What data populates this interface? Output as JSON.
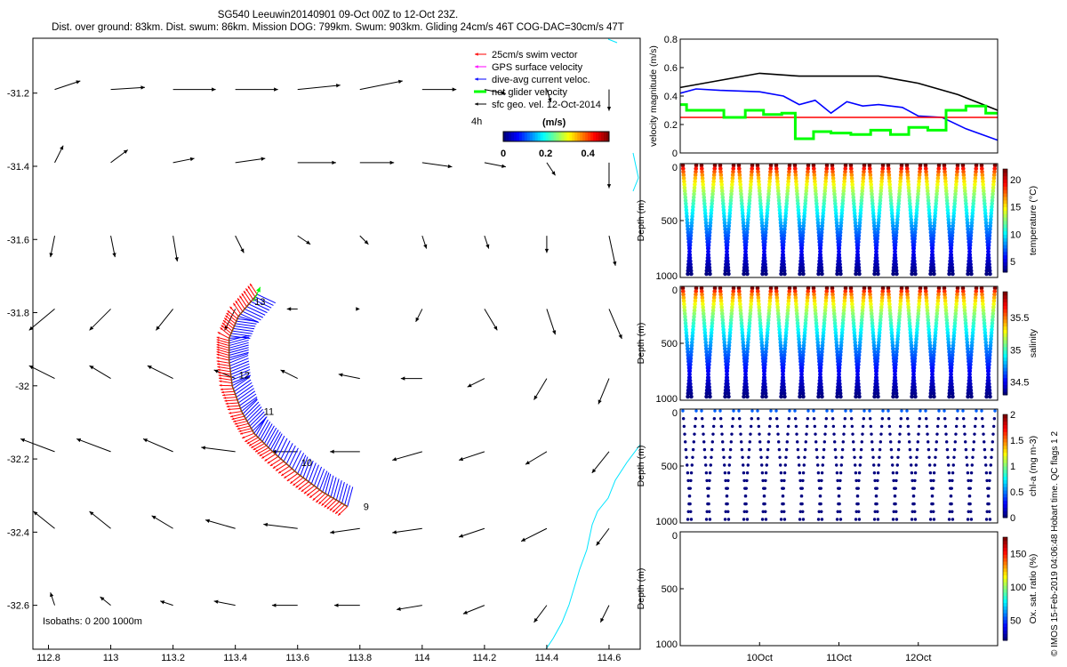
{
  "header": {
    "title_line1": "SG540 Leeuwin20140901 09-Oct 00Z to 12-Oct 23Z.",
    "title_line2": "Dist. over ground: 83km. Dist. swum: 86km. Mission DOG: 799km. Swum: 903km. Gliding 24cm/s 46T COG-DAC=30cm/s 47T"
  },
  "credit": "© IMOS 15-Feb-2019 04:06:48 Hobart time. QC flags 1  2",
  "colors": {
    "swim": "#ff0000",
    "gps": "#ff00ff",
    "dac": "#0000ff",
    "net": "#00ff00",
    "geo": "#000000",
    "coast": "#00e5ff",
    "speed_black": "#000000",
    "speed_blue": "#0000ff",
    "speed_red": "#ff0000",
    "speed_green": "#00ff00"
  },
  "chart_data": [
    {
      "type": "map",
      "xlim": [
        112.75,
        114.7
      ],
      "ylim": [
        -32.72,
        -31.05
      ],
      "x_ticks": [
        "112.8",
        "113",
        "113.2",
        "113.4",
        "113.6",
        "113.8",
        "114",
        "114.2",
        "114.4",
        "114.6"
      ],
      "y_ticks": [
        "-31.2",
        "-31.4",
        "-31.6",
        "-31.8",
        "-32",
        "-32.2",
        "-32.4",
        "-32.6"
      ],
      "legend": [
        "25cm/s swim vector",
        "GPS surface velocity",
        "dive-avg current veloc.",
        "net glider velocity",
        "sfc geo. vel. 12-Oct-2014"
      ],
      "legend_placement": "top-right",
      "colorbar": {
        "label": "(m/s)",
        "ticks": [
          "0",
          "0.2",
          "0.4"
        ],
        "range": [
          0,
          0.5
        ],
        "tag": "4h"
      },
      "isobaths_label": "Isobaths: 0   200  1000m",
      "day_labels": [
        {
          "text": "13",
          "lon": 113.45,
          "lat": -31.77
        },
        {
          "text": "12",
          "lon": 113.4,
          "lat": -31.97
        },
        {
          "text": "11",
          "lon": 113.48,
          "lat": -32.07
        },
        {
          "text": "10",
          "lon": 113.6,
          "lat": -32.21
        },
        {
          "text": "9",
          "lon": 113.8,
          "lat": -32.33
        }
      ],
      "track": [
        [
          113.76,
          -32.33
        ],
        [
          113.68,
          -32.29
        ],
        [
          113.6,
          -32.24
        ],
        [
          113.52,
          -32.18
        ],
        [
          113.46,
          -32.13
        ],
        [
          113.42,
          -32.07
        ],
        [
          113.39,
          -32.0
        ],
        [
          113.38,
          -31.93
        ],
        [
          113.38,
          -31.87
        ],
        [
          113.41,
          -31.81
        ],
        [
          113.47,
          -31.75
        ]
      ],
      "geo_vectors": {
        "lons": [
          112.82,
          113.0,
          113.2,
          113.4,
          113.6,
          113.8,
          114.0,
          114.2,
          114.4,
          114.6
        ],
        "lats": [
          -31.19,
          -31.39,
          -31.59,
          -31.79,
          -31.98,
          -32.18,
          -32.39,
          -32.6
        ],
        "u": [
          [
            0.12,
            0.16,
            0.2,
            0.2,
            0.2,
            0.2,
            0.16,
            0.1,
            0.02,
            0.0
          ],
          [
            0.04,
            0.08,
            0.1,
            0.14,
            0.18,
            0.16,
            0.14,
            0.1,
            0.04,
            0.0
          ],
          [
            -0.02,
            0.02,
            0.02,
            0.04,
            0.06,
            0.04,
            0.02,
            0.02,
            0.0,
            0.03
          ],
          [
            -0.12,
            -0.1,
            -0.08,
            -0.05,
            -0.05,
            0.0,
            -0.03,
            0.06,
            0.04,
            0.06
          ],
          [
            -0.12,
            -0.1,
            -0.12,
            -0.1,
            -0.08,
            -0.1,
            -0.1,
            -0.08,
            -0.06,
            -0.05
          ],
          [
            -0.16,
            -0.16,
            -0.14,
            -0.16,
            -0.12,
            -0.14,
            -0.14,
            -0.12,
            -0.1,
            -0.08
          ],
          [
            -0.1,
            -0.1,
            -0.1,
            -0.14,
            -0.16,
            -0.14,
            -0.14,
            -0.12,
            -0.12,
            -0.06
          ],
          [
            -0.02,
            -0.05,
            -0.06,
            -0.1,
            -0.12,
            -0.12,
            -0.12,
            -0.1,
            -0.06,
            -0.04
          ]
        ],
        "v": [
          [
            0.04,
            0.01,
            0.0,
            0.0,
            0.02,
            0.04,
            0.0,
            -0.02,
            -0.06,
            -0.1
          ],
          [
            0.08,
            0.06,
            0.02,
            0.02,
            0.0,
            0.0,
            -0.02,
            -0.02,
            -0.06,
            -0.12
          ],
          [
            -0.1,
            -0.1,
            -0.12,
            -0.08,
            -0.04,
            -0.04,
            -0.06,
            -0.06,
            -0.08,
            -0.14
          ],
          [
            -0.1,
            -0.1,
            -0.1,
            -0.1,
            0.0,
            0.0,
            -0.06,
            -0.1,
            -0.12,
            -0.14
          ],
          [
            0.06,
            0.06,
            0.06,
            0.04,
            0.04,
            0.02,
            0.0,
            -0.04,
            -0.1,
            -0.12
          ],
          [
            0.06,
            0.06,
            0.06,
            0.02,
            0.0,
            0.0,
            -0.04,
            -0.04,
            -0.06,
            -0.1
          ],
          [
            0.08,
            0.08,
            0.06,
            0.04,
            0.02,
            -0.02,
            -0.02,
            -0.04,
            -0.06,
            -0.08
          ],
          [
            0.06,
            0.04,
            0.02,
            0.02,
            0.0,
            0.0,
            -0.02,
            -0.04,
            -0.08,
            -0.08
          ]
        ]
      }
    },
    {
      "type": "line",
      "ylabel": "velocity magnitude (m/s)",
      "ylim": [
        0,
        0.8
      ],
      "y_ticks": [
        "0",
        "0.2",
        "0.4",
        "0.6",
        "0.8"
      ],
      "x_range_days": [
        9.0,
        13.0
      ],
      "series": [
        {
          "color": "black",
          "x": [
            9.0,
            9.5,
            10.0,
            10.5,
            11.0,
            11.5,
            12.0,
            12.5,
            13.0
          ],
          "y": [
            0.46,
            0.51,
            0.56,
            0.54,
            0.54,
            0.54,
            0.49,
            0.41,
            0.3
          ]
        },
        {
          "color": "blue",
          "x": [
            9.0,
            9.2,
            9.5,
            10.0,
            10.3,
            10.5,
            10.7,
            10.9,
            11.1,
            11.3,
            11.5,
            11.8,
            12.0,
            12.3,
            12.6,
            13.0
          ],
          "y": [
            0.42,
            0.45,
            0.44,
            0.43,
            0.4,
            0.34,
            0.37,
            0.28,
            0.36,
            0.33,
            0.34,
            0.32,
            0.26,
            0.25,
            0.17,
            0.09
          ]
        },
        {
          "color": "red",
          "x": [
            9.0,
            13.0
          ],
          "y": [
            0.25,
            0.25
          ]
        },
        {
          "color": "green",
          "x": [
            9.0,
            9.08,
            9.08,
            9.32,
            9.32,
            9.55,
            9.55,
            9.82,
            9.82,
            10.05,
            10.05,
            10.28,
            10.28,
            10.45,
            10.45,
            10.68,
            10.68,
            10.9,
            10.9,
            11.15,
            11.15,
            11.4,
            11.4,
            11.65,
            11.65,
            11.88,
            11.88,
            12.12,
            12.12,
            12.35,
            12.35,
            12.6,
            12.6,
            12.85,
            12.85,
            13.0
          ],
          "y": [
            0.34,
            0.34,
            0.3,
            0.3,
            0.3,
            0.3,
            0.25,
            0.25,
            0.3,
            0.3,
            0.27,
            0.27,
            0.28,
            0.28,
            0.1,
            0.1,
            0.15,
            0.15,
            0.14,
            0.14,
            0.13,
            0.13,
            0.16,
            0.16,
            0.13,
            0.13,
            0.18,
            0.18,
            0.16,
            0.16,
            0.3,
            0.3,
            0.33,
            0.33,
            0.28,
            0.28
          ]
        }
      ]
    },
    {
      "type": "scatter",
      "variable": "temperature",
      "ylabel": "Depth (m)",
      "colorbar_label": "temperature (°C)",
      "colorbar_ticks": [
        "5",
        "10",
        "15",
        "20"
      ],
      "clim": [
        3,
        22
      ],
      "ylim": [
        1000,
        0
      ],
      "y_ticks": [
        "0",
        "500",
        "1000"
      ],
      "n_dives": 17,
      "surface_value": 21,
      "deep_value": 4
    },
    {
      "type": "scatter",
      "variable": "salinity",
      "ylabel": "Depth (m)",
      "colorbar_label": "salinity",
      "colorbar_ticks": [
        "34.5",
        "35",
        "35.5"
      ],
      "clim": [
        34.3,
        35.9
      ],
      "ylim": [
        1000,
        0
      ],
      "y_ticks": [
        "0",
        "500",
        "1000"
      ],
      "n_dives": 17,
      "surface_value": 35.7,
      "deep_value": 34.4
    },
    {
      "type": "scatter",
      "variable": "chl-a",
      "ylabel": "Depth (m)",
      "colorbar_label": "chl-a (mg m-3)",
      "colorbar_ticks": [
        "0",
        "0.5",
        "1",
        "1.5",
        "2"
      ],
      "clim": [
        0,
        2
      ],
      "ylim": [
        1000,
        0
      ],
      "y_ticks": [
        "0",
        "500",
        "1000"
      ],
      "n_dives": 17,
      "surface_value": 0.4,
      "deep_value": 0.0
    },
    {
      "type": "scatter",
      "variable": "oxygen",
      "ylabel": "Depth (m)",
      "colorbar_label": "Ox. sat. ratio (%)",
      "colorbar_ticks": [
        "50",
        "100",
        "150"
      ],
      "clim": [
        20,
        175
      ],
      "ylim": [
        1000,
        0
      ],
      "y_ticks": [
        "0",
        "500",
        "1000"
      ],
      "x_ticks": [
        "10Oct",
        "11Oct",
        "12Oct"
      ],
      "x_tick_days": [
        10,
        11,
        12
      ],
      "n_dives": 0
    }
  ]
}
